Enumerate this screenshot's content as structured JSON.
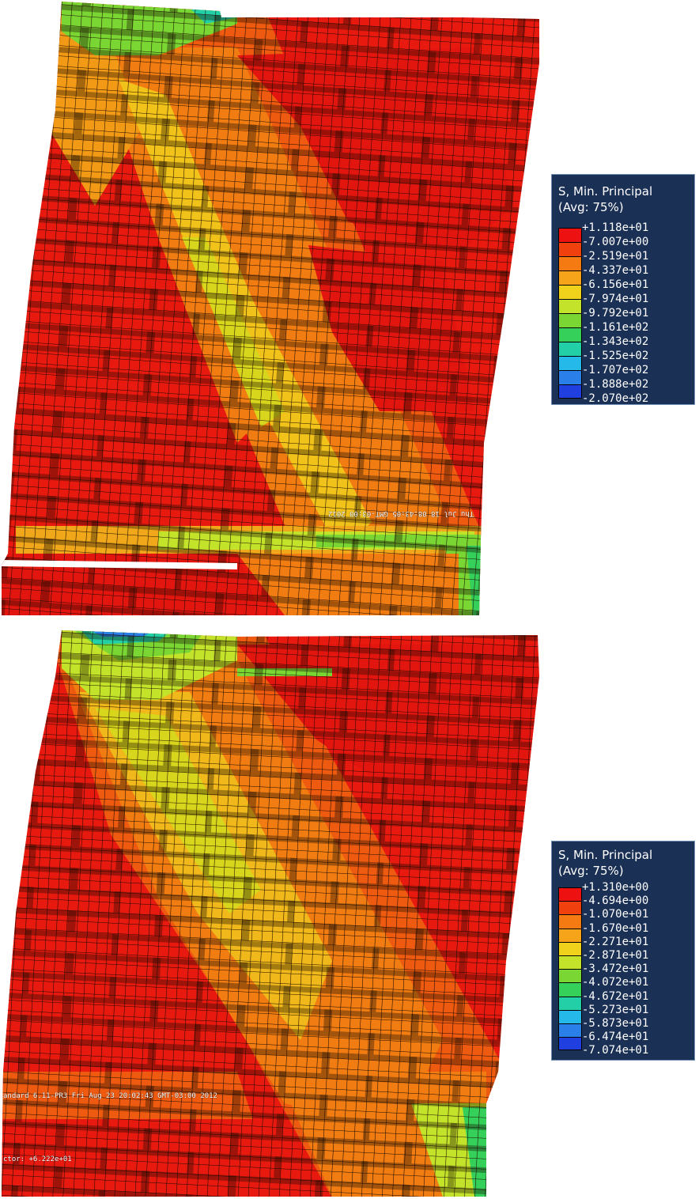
{
  "panels": [
    {
      "id": "top",
      "overlay_mirrored_text": "Thu Jul 18 08:43:05 GMT-03:00 2012",
      "legend": {
        "title_line1": "S, Min. Principal",
        "title_line2": "(Avg: 75%)",
        "values": [
          "+1.118e+01",
          "-7.007e+00",
          "-2.519e+01",
          "-4.337e+01",
          "-6.156e+01",
          "-7.974e+01",
          "-9.792e+01",
          "-1.161e+02",
          "-1.343e+02",
          "-1.525e+02",
          "-1.707e+02",
          "-1.888e+02",
          "-2.070e+02"
        ]
      }
    },
    {
      "id": "bottom",
      "overlay_text_1": "andard 6.11-PR3   Fri Aug 23 20:02:43 GMT-03:00 2012",
      "overlay_text_2": "ctor: +6.222e+01",
      "legend": {
        "title_line1": "S, Min. Principal",
        "title_line2": "(Avg: 75%)",
        "values": [
          "+1.310e+00",
          "-4.694e+00",
          "-1.070e+01",
          "-1.670e+01",
          "-2.271e+01",
          "-2.871e+01",
          "-3.472e+01",
          "-4.072e+01",
          "-4.672e+01",
          "-5.273e+01",
          "-5.873e+01",
          "-6.474e+01",
          "-7.074e+01"
        ]
      }
    }
  ],
  "colors": {
    "contour_scale": [
      "#ee1111",
      "#f0400e",
      "#f57a12",
      "#f6a51a",
      "#f0d21c",
      "#c3e32a",
      "#7ad632",
      "#35d05a",
      "#22cfa6",
      "#24b9e8",
      "#2a7fe8",
      "#1f3fe0",
      "#1010d8"
    ],
    "legend_bg": "#1b3055",
    "mesh_line": "#1a0a00"
  }
}
